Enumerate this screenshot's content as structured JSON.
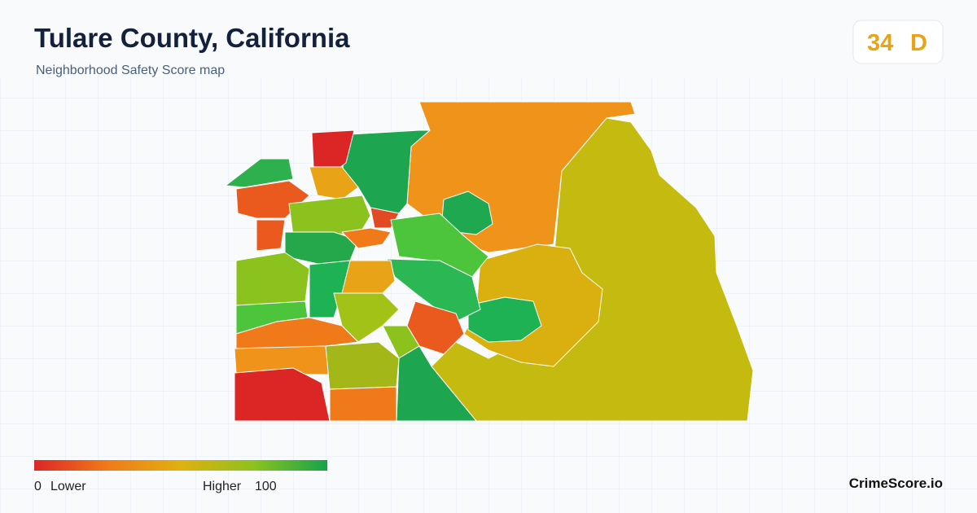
{
  "header": {
    "title": "Tulare County, California",
    "subtitle": "Neighborhood Safety Score map"
  },
  "badge": {
    "score": 34,
    "grade": "D"
  },
  "legend": {
    "min": 0,
    "min_label": "Lower",
    "max_label": "Higher",
    "max": 100
  },
  "brand": "CrimeScore.io"
}
